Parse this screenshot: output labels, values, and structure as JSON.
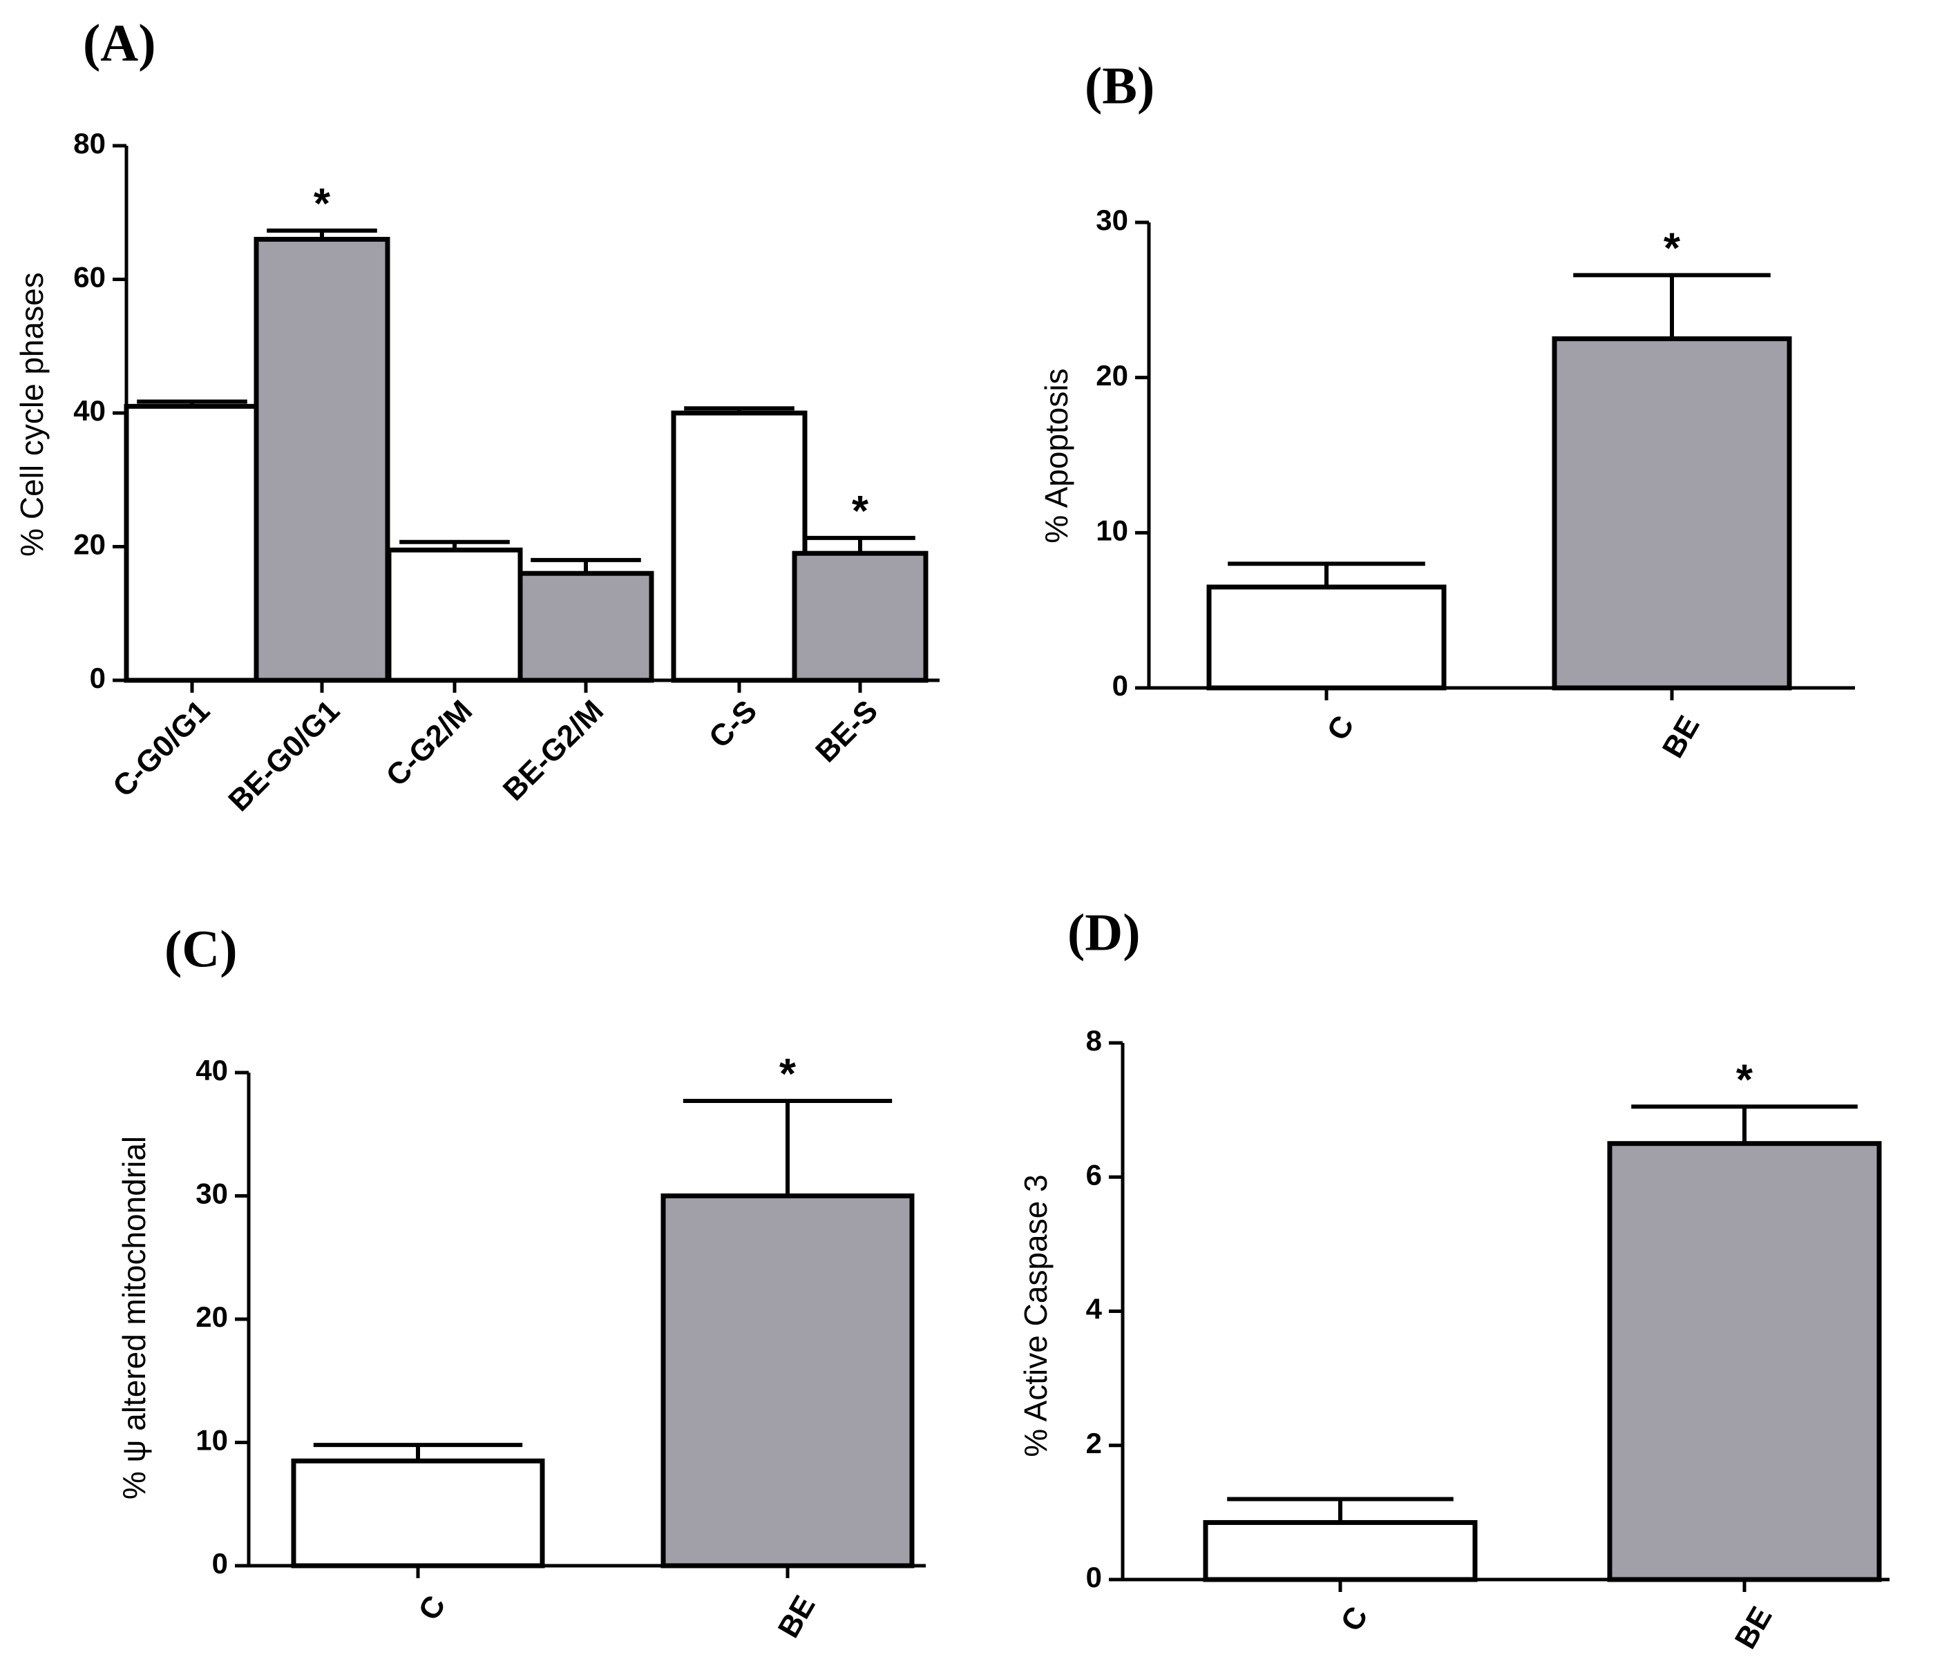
{
  "chart_data": [
    {
      "panel": "(A)",
      "type": "bar",
      "ylabel": "% Cell cycle phases",
      "ylim": [
        0,
        80
      ],
      "yticks": [
        "0",
        "20",
        "40",
        "60",
        "80"
      ],
      "categories": [
        "C-G0/G1",
        "BE-G0/G1",
        "C-G2/M",
        "BE-G2/M",
        "C-S",
        "BE-S"
      ],
      "values": [
        41,
        66,
        19.5,
        16,
        40,
        19
      ],
      "errors": [
        0.7,
        1.3,
        1.2,
        2.0,
        0.7,
        2.3
      ],
      "significance": [
        "",
        "*",
        "",
        "",
        "",
        "*"
      ],
      "colors": [
        "#ffffff",
        "#a1a0a8",
        "#ffffff",
        "#a1a0a8",
        "#ffffff",
        "#a1a0a8"
      ]
    },
    {
      "panel": "(B)",
      "type": "bar",
      "ylabel": "% Apoptosis",
      "ylim": [
        0,
        30
      ],
      "yticks": [
        "0",
        "10",
        "20",
        "30"
      ],
      "categories": [
        "C",
        "BE"
      ],
      "values": [
        6.5,
        22.5
      ],
      "errors": [
        1.5,
        4.1
      ],
      "significance": [
        "",
        "*"
      ],
      "colors": [
        "#ffffff",
        "#a1a0a8"
      ]
    },
    {
      "panel": "(C)",
      "type": "bar",
      "ylabel": "% ψ altered mitochondrial",
      "ylim": [
        0,
        40
      ],
      "yticks": [
        "0",
        "10",
        "20",
        "30",
        "40"
      ],
      "categories": [
        "C",
        "BE"
      ],
      "values": [
        8.5,
        30
      ],
      "errors": [
        1.3,
        7.7
      ],
      "significance": [
        "",
        "*"
      ],
      "colors": [
        "#ffffff",
        "#a1a0a8"
      ]
    },
    {
      "panel": "(D)",
      "type": "bar",
      "ylabel": "% Active Caspase 3",
      "ylim": [
        0,
        8
      ],
      "yticks": [
        "0",
        "2",
        "4",
        "6",
        "8"
      ],
      "categories": [
        "C",
        "BE"
      ],
      "values": [
        0.85,
        6.5
      ],
      "errors": [
        0.35,
        0.55
      ],
      "significance": [
        "",
        "*"
      ],
      "colors": [
        "#ffffff",
        "#a1a0a8"
      ]
    }
  ]
}
